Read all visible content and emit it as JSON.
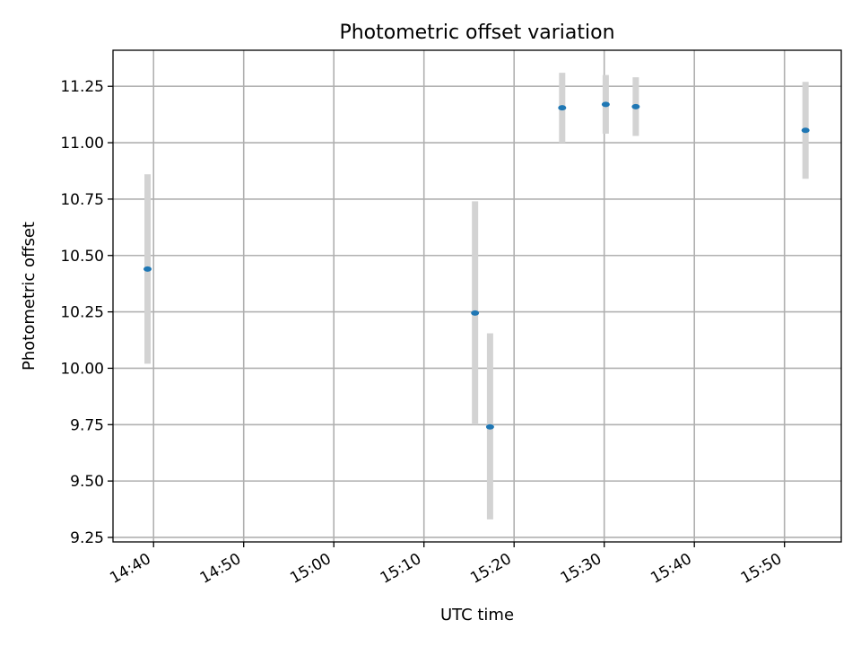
{
  "chart_data": {
    "type": "scatter",
    "title": "Photometric offset variation",
    "xlabel": "UTC time",
    "ylabel": "Photometric offset",
    "x_ticks": [
      "14:40",
      "14:50",
      "15:00",
      "15:10",
      "15:20",
      "15:30",
      "15:40",
      "15:50"
    ],
    "x_tick_minutes": [
      880,
      890,
      900,
      910,
      920,
      930,
      940,
      950
    ],
    "x_range_minutes": [
      875.5,
      956.3
    ],
    "y_ticks": [
      "9.25",
      "9.50",
      "9.75",
      "10.00",
      "10.25",
      "10.50",
      "10.75",
      "11.00",
      "11.25"
    ],
    "ylim": [
      9.23,
      11.41
    ],
    "grid": true,
    "marker_color": "#1f77b4",
    "errorbar_color": "#d3d3d3",
    "points": [
      {
        "x": "14:39:20",
        "y": 10.44,
        "yerr_low": 10.02,
        "yerr_high": 10.86
      },
      {
        "x": "15:15:40",
        "y": 10.245,
        "yerr_low": 9.75,
        "yerr_high": 10.74
      },
      {
        "x": "15:17:20",
        "y": 9.74,
        "yerr_low": 9.33,
        "yerr_high": 10.155
      },
      {
        "x": "15:25:20",
        "y": 11.155,
        "yerr_low": 11.0,
        "yerr_high": 11.31
      },
      {
        "x": "15:30:10",
        "y": 11.17,
        "yerr_low": 11.04,
        "yerr_high": 11.3
      },
      {
        "x": "15:33:30",
        "y": 11.16,
        "yerr_low": 11.03,
        "yerr_high": 11.29
      },
      {
        "x": "15:52:20",
        "y": 11.055,
        "yerr_low": 10.84,
        "yerr_high": 11.27
      }
    ]
  }
}
